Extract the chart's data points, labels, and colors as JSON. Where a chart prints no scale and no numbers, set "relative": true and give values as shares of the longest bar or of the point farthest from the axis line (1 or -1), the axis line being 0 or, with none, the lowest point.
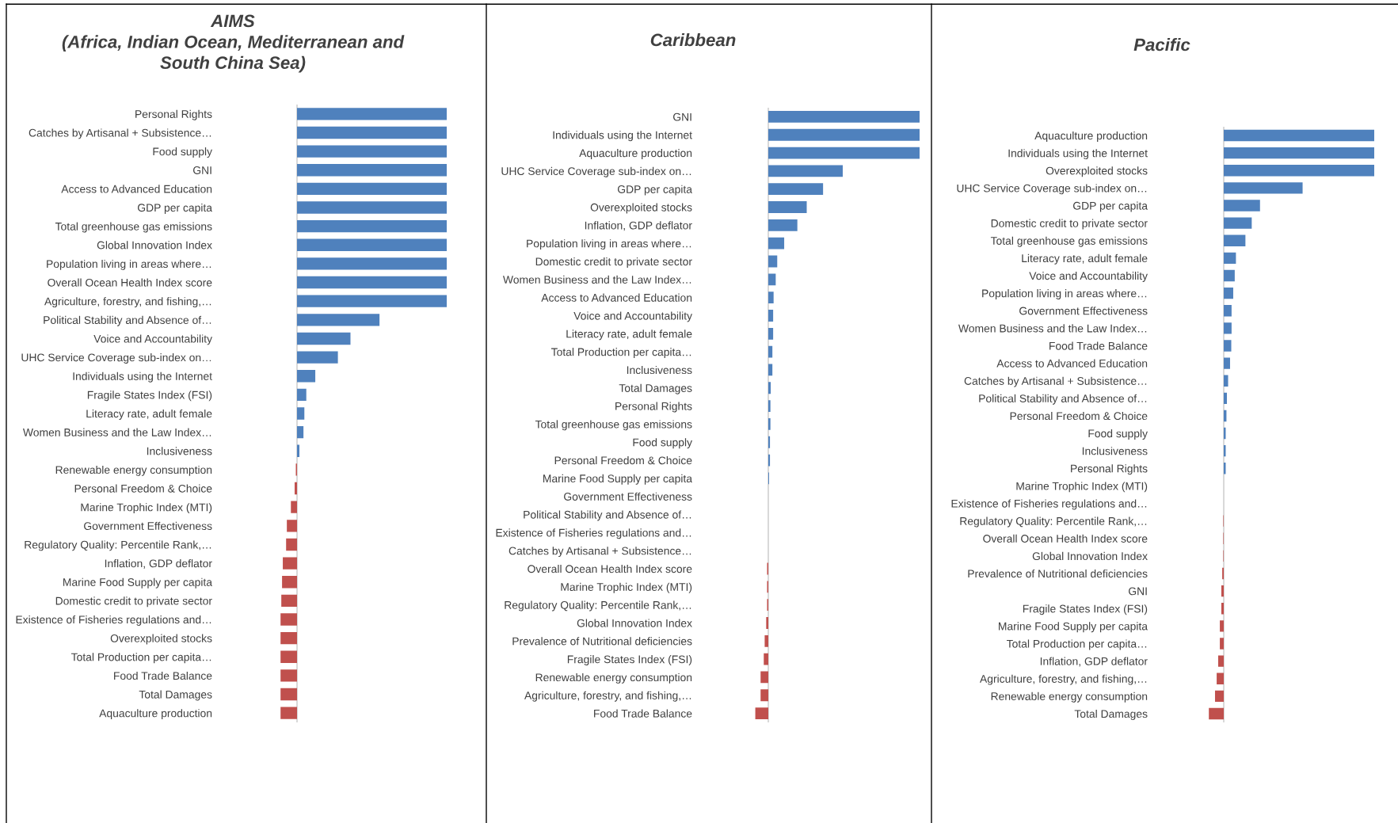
{
  "chart_data": [
    {
      "type": "bar",
      "orientation": "horizontal",
      "relative": true,
      "title": "AIMS\n(Africa, Indian Ocean, Mediterranean and\nSouth China Sea)",
      "categories": [
        "Personal Rights",
        "Catches by Artisanal + Subsistence…",
        "Food supply",
        "GNI",
        "Access to Advanced Education",
        "GDP per capita",
        "Total greenhouse gas emissions",
        "Global Innovation Index",
        "Population living in areas where…",
        "Overall Ocean Health Index score",
        "Agriculture, forestry, and fishing,…",
        "Political Stability and Absence of…",
        "Voice and Accountability",
        "UHC Service Coverage sub-index on…",
        "Individuals using the Internet",
        "Fragile States Index (FSI)",
        "Literacy rate, adult female",
        "Women Business and the Law Index…",
        "Inclusiveness",
        "Renewable energy consumption",
        "Personal Freedom & Choice",
        "Marine Trophic Index (MTI)",
        "Government Effectiveness",
        "Regulatory Quality: Percentile Rank,…",
        "Inflation, GDP deflator",
        "Marine Food Supply per capita",
        "Domestic credit to private sector",
        "Existence of Fisheries regulations and…",
        "Overexploited stocks",
        "Total Production per capita…",
        "Food Trade Balance",
        "Total Damages",
        "Aquaculture production"
      ],
      "values": [
        1,
        1,
        1,
        1,
        1,
        1,
        1,
        1,
        1,
        1,
        1,
        0.551,
        0.357,
        0.273,
        0.122,
        0.062,
        0.049,
        0.043,
        0.016,
        -0.008,
        -0.016,
        -0.041,
        -0.068,
        -0.073,
        -0.095,
        -0.1,
        -0.105,
        -0.11,
        -0.11,
        -0.11,
        -0.11,
        -0.11,
        -0.11
      ],
      "colors": [
        "#4f81bd",
        "#4f81bd",
        "#4f81bd",
        "#4f81bd",
        "#4f81bd",
        "#4f81bd",
        "#4f81bd",
        "#4f81bd",
        "#4f81bd",
        "#4f81bd",
        "#4f81bd",
        "#4f81bd",
        "#4f81bd",
        "#4f81bd",
        "#4f81bd",
        "#4f81bd",
        "#4f81bd",
        "#4f81bd",
        "#4f81bd",
        "#c0504d",
        "#c0504d",
        "#c0504d",
        "#c0504d",
        "#c0504d",
        "#c0504d",
        "#c0504d",
        "#c0504d",
        "#c0504d",
        "#c0504d",
        "#c0504d",
        "#c0504d",
        "#c0504d",
        "#c0504d"
      ]
    },
    {
      "type": "bar",
      "orientation": "horizontal",
      "relative": true,
      "title": "Caribbean",
      "categories": [
        "GNI",
        "Individuals using the Internet",
        "Aquaculture production",
        "UHC Service Coverage sub-index on…",
        "GDP per capita",
        "Overexploited stocks",
        "Inflation, GDP deflator",
        "Population living in areas where…",
        "Domestic credit to private sector",
        "Women Business and the Law Index…",
        "Access to Advanced Education",
        "Voice and Accountability",
        "Literacy rate, adult female",
        "Total Production per capita…",
        "Inclusiveness",
        "Total Damages",
        "Personal Rights",
        "Total greenhouse gas emissions",
        "Food supply",
        "Personal Freedom & Choice",
        "Marine Food Supply per capita",
        "Government Effectiveness",
        "Political Stability and Absence of…",
        "Existence of Fisheries regulations and…",
        "Catches by Artisanal + Subsistence…",
        "Overall Ocean Health Index score",
        "Marine Trophic Index (MTI)",
        "Regulatory Quality: Percentile Rank,…",
        "Global Innovation Index",
        "Prevalence of Nutritional deficiencies",
        "Fragile States Index (FSI)",
        "Renewable energy consumption",
        "Agriculture, forestry, and fishing,…",
        "Food Trade Balance"
      ],
      "values": [
        1,
        1,
        1,
        0.492,
        0.362,
        0.254,
        0.192,
        0.105,
        0.059,
        0.049,
        0.035,
        0.032,
        0.032,
        0.027,
        0.027,
        0.016,
        0.014,
        0.014,
        0.011,
        0.011,
        0.005,
        0,
        0,
        0,
        0,
        -0.008,
        -0.008,
        -0.008,
        -0.014,
        -0.024,
        -0.03,
        -0.051,
        -0.051,
        -0.086
      ],
      "colors": [
        "#4f81bd",
        "#4f81bd",
        "#4f81bd",
        "#4f81bd",
        "#4f81bd",
        "#4f81bd",
        "#4f81bd",
        "#4f81bd",
        "#4f81bd",
        "#4f81bd",
        "#4f81bd",
        "#4f81bd",
        "#4f81bd",
        "#4f81bd",
        "#4f81bd",
        "#4f81bd",
        "#4f81bd",
        "#4f81bd",
        "#4f81bd",
        "#4f81bd",
        "#4f81bd",
        "#4f81bd",
        "#4f81bd",
        "#4f81bd",
        "#4f81bd",
        "#c0504d",
        "#c0504d",
        "#c0504d",
        "#c0504d",
        "#c0504d",
        "#c0504d",
        "#c0504d",
        "#c0504d",
        "#c0504d"
      ]
    },
    {
      "type": "bar",
      "orientation": "horizontal",
      "relative": true,
      "title": "Pacific",
      "categories": [
        "Aquaculture production",
        "Individuals using the Internet",
        "Overexploited stocks",
        "UHC Service Coverage sub-index on…",
        "GDP per capita",
        "Domestic credit to private sector",
        "Total greenhouse gas emissions",
        "Literacy rate, adult female",
        "Voice and Accountability",
        "Population living in areas where…",
        "Government Effectiveness",
        "Women Business and the Law Index…",
        "Food Trade Balance",
        "Access to Advanced Education",
        "Catches by Artisanal + Subsistence…",
        "Political Stability and Absence of…",
        "Personal Freedom & Choice",
        "Food supply",
        "Inclusiveness",
        "Personal Rights",
        "Marine Trophic Index (MTI)",
        "Existence of Fisheries regulations and…",
        "Regulatory Quality: Percentile Rank,…",
        "Overall Ocean Health Index score",
        "Global Innovation Index",
        "Prevalence of Nutritional deficiencies",
        "GNI",
        "Fragile States Index (FSI)",
        "Marine Food Supply per capita",
        "Total Production per capita…",
        "Inflation, GDP deflator",
        "Agriculture, forestry, and fishing,…",
        "Renewable energy consumption",
        "Total Damages"
      ],
      "values": [
        1,
        1,
        1,
        0.524,
        0.241,
        0.186,
        0.144,
        0.081,
        0.073,
        0.063,
        0.052,
        0.052,
        0.05,
        0.042,
        0.029,
        0.021,
        0.018,
        0.013,
        0.013,
        0.013,
        0,
        0,
        -0.003,
        -0.003,
        -0.003,
        -0.01,
        -0.016,
        -0.016,
        -0.026,
        -0.026,
        -0.037,
        -0.047,
        -0.058,
        -0.099
      ],
      "colors": [
        "#4f81bd",
        "#4f81bd",
        "#4f81bd",
        "#4f81bd",
        "#4f81bd",
        "#4f81bd",
        "#4f81bd",
        "#4f81bd",
        "#4f81bd",
        "#4f81bd",
        "#4f81bd",
        "#4f81bd",
        "#4f81bd",
        "#4f81bd",
        "#4f81bd",
        "#4f81bd",
        "#4f81bd",
        "#4f81bd",
        "#4f81bd",
        "#4f81bd",
        "#4f81bd",
        "#4f81bd",
        "#c0504d",
        "#c0504d",
        "#c0504d",
        "#c0504d",
        "#c0504d",
        "#c0504d",
        "#c0504d",
        "#c0504d",
        "#c0504d",
        "#c0504d",
        "#c0504d",
        "#c0504d"
      ]
    }
  ]
}
